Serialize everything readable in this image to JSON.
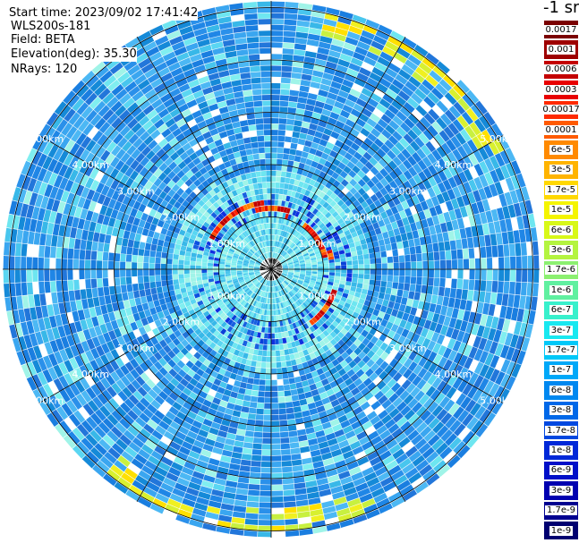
{
  "info": {
    "start_time": "Start time: 2023/09/02 17:41:42",
    "station": "WLS200s-181",
    "field": "Field: BETA",
    "elevation": "Elevation(deg): 35.30",
    "nrays": "NRays: 120"
  },
  "colorbar": {
    "title": "-1 sr",
    "levels": [
      {
        "label": "0.0017",
        "color": "#7a0000"
      },
      {
        "label": "0.001",
        "color": "#9e0000"
      },
      {
        "label": "0.0006",
        "color": "#c40000"
      },
      {
        "label": "0.0003",
        "color": "#e80000"
      },
      {
        "label": "0.00017",
        "color": "#ff2a00"
      },
      {
        "label": "0.0001",
        "color": "#ff5a00"
      },
      {
        "label": "6e-5",
        "color": "#ff8a00"
      },
      {
        "label": "3e-5",
        "color": "#ffb400"
      },
      {
        "label": "1.7e-5",
        "color": "#ffd800"
      },
      {
        "label": "1e-5",
        "color": "#f4f400"
      },
      {
        "label": "6e-6",
        "color": "#d8f818"
      },
      {
        "label": "3e-6",
        "color": "#b4f440"
      },
      {
        "label": "1.7e-6",
        "color": "#8cf070"
      },
      {
        "label": "1e-6",
        "color": "#60f0a0"
      },
      {
        "label": "6e-7",
        "color": "#38f0cc"
      },
      {
        "label": "3e-7",
        "color": "#18e8f0"
      },
      {
        "label": "1.7e-7",
        "color": "#00c8f8"
      },
      {
        "label": "1e-7",
        "color": "#00a8f8"
      },
      {
        "label": "6e-8",
        "color": "#0088f0"
      },
      {
        "label": "3e-8",
        "color": "#0068e8"
      },
      {
        "label": "1.7e-8",
        "color": "#0048e0"
      },
      {
        "label": "1e-8",
        "color": "#0028d8"
      },
      {
        "label": "6e-9",
        "color": "#0010c8"
      },
      {
        "label": "3e-9",
        "color": "#0000b0"
      },
      {
        "label": "1.7e-9",
        "color": "#000090"
      },
      {
        "label": "1e-9",
        "color": "#000070"
      }
    ]
  },
  "range_labels": [
    "1.00km",
    "2.00km",
    "3.00km",
    "4.00km",
    "5.00km"
  ],
  "rays": 120,
  "max_range_km": 5.5
}
